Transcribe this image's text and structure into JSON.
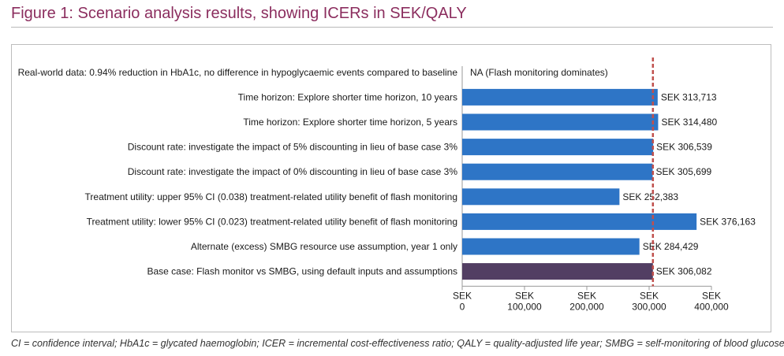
{
  "figure": {
    "title": "Figure 1: Scenario analysis results, showing ICERs in SEK/QALY",
    "footnote": "CI = confidence interval; HbA1c = glycated haemoglobin; ICER = incremental cost-effectiveness ratio; QALY = quality-adjusted life year; SMBG = self-monitoring of blood glucose."
  },
  "colors": {
    "title": "#8b2d5e",
    "bar": "#2e75c6",
    "base_bar": "#523e63",
    "reference_line": "#c0504d"
  },
  "chart_data": {
    "type": "bar",
    "orientation": "horizontal",
    "categories": [
      "Real-world data: 0.94% reduction in HbA1c, no difference in hypoglycaemic events compared to baseline",
      "Time horizon: Explore shorter time horizon, 10 years",
      "Time horizon: Explore shorter time horizon, 5 years",
      "Discount rate: investigate the impact of 5% discounting in lieu of base case 3%",
      "Discount rate: investigate the impact of 0% discounting in lieu of base case 3%",
      "Treatment utility: upper 95% CI (0.038) treatment-related utility benefit of flash monitoring",
      "Treatment utility: lower 95% CI (0.023) treatment-related utility benefit of flash monitoring",
      "Alternate (excess) SMBG resource use assumption, year 1 only",
      "Base case: Flash monitor vs SMBG, using default inputs and assumptions"
    ],
    "values": [
      null,
      313713,
      314480,
      306539,
      305699,
      252383,
      376163,
      284429,
      306082
    ],
    "data_labels": [
      "NA (Flash monitoring dominates)",
      "SEK 313,713",
      "SEK 314,480",
      "SEK 306,539",
      "SEK 305,699",
      "SEK 252,383",
      "SEK 376,163",
      "SEK 284,429",
      "SEK 306,082"
    ],
    "highlight_index": 8,
    "x_ticks": [
      {
        "value": 0,
        "line1": "SEK",
        "line2": "0"
      },
      {
        "value": 100000,
        "line1": "SEK",
        "line2": "100,000"
      },
      {
        "value": 200000,
        "line1": "SEK",
        "line2": "200,000"
      },
      {
        "value": 300000,
        "line1": "SEK",
        "line2": "300,000"
      },
      {
        "value": 400000,
        "line1": "SEK",
        "line2": "400,000"
      }
    ],
    "xlim": [
      0,
      400000
    ],
    "reference_line": 306082,
    "grid": false,
    "legend": "none"
  }
}
